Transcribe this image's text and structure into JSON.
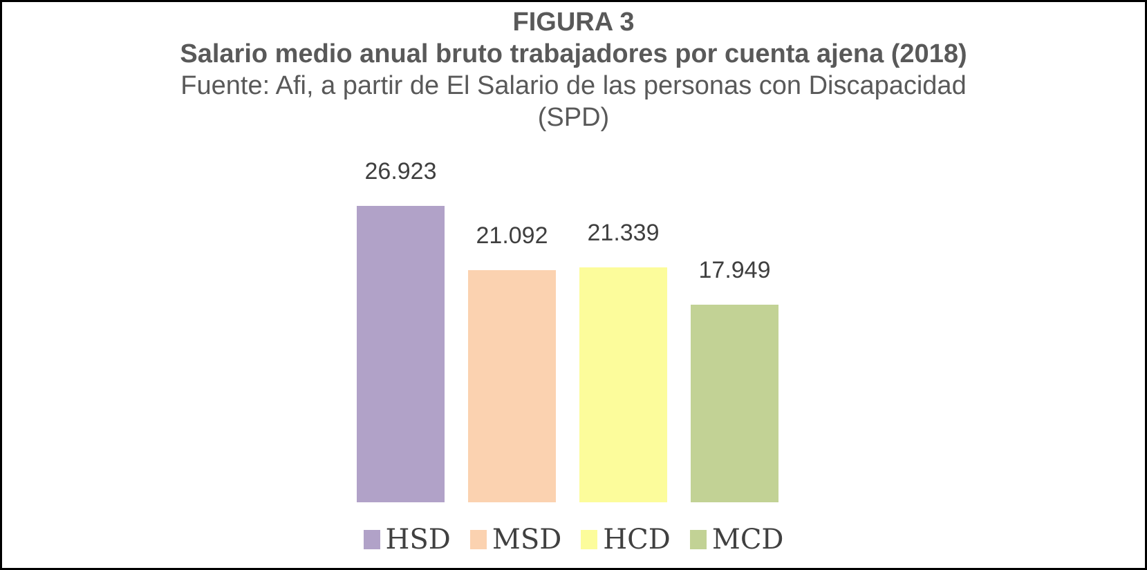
{
  "figure": {
    "title": "FIGURA 3",
    "subtitle": "Salario medio anual bruto trabajadores por cuenta ajena (2018)",
    "source_line1": "Fuente: Afi, a partir de El Salario de las personas con Discapacidad",
    "source_line2": "(SPD)"
  },
  "chart_data": {
    "type": "bar",
    "title": "FIGURA 3 — Salario medio anual bruto trabajadores por cuenta ajena (2018)",
    "subtitle": "Fuente: Afi, a partir de El Salario de las personas con Discapacidad (SPD)",
    "categories": [
      "HSD",
      "MSD",
      "HCD",
      "MCD"
    ],
    "values": [
      26923,
      21092,
      21339,
      17949
    ],
    "value_labels": [
      "26.923",
      "21.092",
      "21.339",
      "17.949"
    ],
    "colors": [
      "#B1A2C8",
      "#FBD2B0",
      "#FCFC9B",
      "#C2D295"
    ],
    "xlabel": "",
    "ylabel": "",
    "ylim": [
      0,
      30000
    ],
    "grid": false,
    "axes_visible": false,
    "data_labels": true,
    "legend_position": "bottom",
    "legend": [
      "HSD",
      "MSD",
      "HCD",
      "MCD"
    ]
  },
  "style": {
    "title_color": "#595959",
    "label_color": "#3F3F3F",
    "legend_text_color": "#404040",
    "border_color": "#000000",
    "background": "#FFFFFF"
  }
}
